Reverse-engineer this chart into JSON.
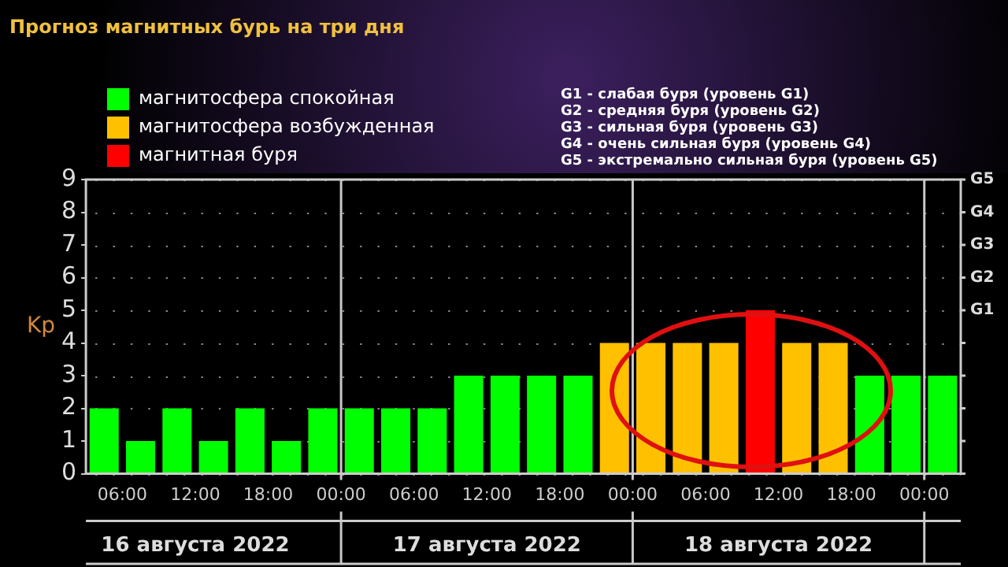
{
  "chart_data": {
    "type": "bar",
    "title": "Прогноз магнитных бурь на три дня",
    "ylabel": "Kp",
    "x": [
      "2022-08-16T04:30",
      "2022-08-16T07:30",
      "2022-08-16T10:30",
      "2022-08-16T13:30",
      "2022-08-16T16:30",
      "2022-08-16T19:30",
      "2022-08-16T22:30",
      "2022-08-17T01:30",
      "2022-08-17T04:30",
      "2022-08-17T07:30",
      "2022-08-17T10:30",
      "2022-08-17T13:30",
      "2022-08-17T16:30",
      "2022-08-17T19:30",
      "2022-08-17T22:30",
      "2022-08-18T01:30",
      "2022-08-18T04:30",
      "2022-08-18T07:30",
      "2022-08-18T10:30",
      "2022-08-18T13:30",
      "2022-08-18T16:30",
      "2022-08-18T19:30",
      "2022-08-18T22:30",
      "2022-08-19T01:30"
    ],
    "series": [
      {
        "name": "магнитосфера спокойная",
        "color": "#00ff00",
        "values": [
          2,
          1,
          2,
          1,
          2,
          1,
          2,
          2,
          2,
          2,
          3,
          3,
          3,
          3,
          null,
          null,
          null,
          null,
          null,
          null,
          null,
          3,
          3,
          3
        ]
      },
      {
        "name": "магнитосфера возбужденная",
        "color": "#ffc000",
        "values": [
          null,
          null,
          null,
          null,
          null,
          null,
          null,
          null,
          null,
          null,
          null,
          null,
          null,
          null,
          4,
          4,
          4,
          4,
          null,
          4,
          4,
          null,
          null,
          null
        ]
      },
      {
        "name": "магнитная буря",
        "color": "#ff0000",
        "values": [
          null,
          null,
          null,
          null,
          null,
          null,
          null,
          null,
          null,
          null,
          null,
          null,
          null,
          null,
          null,
          null,
          null,
          null,
          5,
          null,
          null,
          null,
          null,
          null
        ]
      }
    ],
    "stacked": true,
    "xlim": [
      "2022-08-16T03:00",
      "2022-08-19T03:00"
    ],
    "xticks": [
      {
        "value": "2022-08-16T06:00",
        "label": "06:00"
      },
      {
        "value": "2022-08-16T12:00",
        "label": "12:00"
      },
      {
        "value": "2022-08-16T18:00",
        "label": "18:00"
      },
      {
        "value": "2022-08-17T00:00",
        "label": "00:00"
      },
      {
        "value": "2022-08-17T06:00",
        "label": "06:00"
      },
      {
        "value": "2022-08-17T12:00",
        "label": "12:00"
      },
      {
        "value": "2022-08-17T18:00",
        "label": "18:00"
      },
      {
        "value": "2022-08-18T00:00",
        "label": "00:00"
      },
      {
        "value": "2022-08-18T06:00",
        "label": "06:00"
      },
      {
        "value": "2022-08-18T12:00",
        "label": "12:00"
      },
      {
        "value": "2022-08-18T18:00",
        "label": "18:00"
      },
      {
        "value": "2022-08-19T00:00",
        "label": "00:00"
      }
    ],
    "ylim": [
      0,
      9
    ],
    "yticks": [
      0,
      1,
      2,
      3,
      4,
      5,
      6,
      7,
      8,
      9
    ],
    "ref_lines": [
      {
        "axis": "x",
        "value": "2022-08-17T00:00",
        "color": "#c8c8c8"
      },
      {
        "axis": "x",
        "value": "2022-08-18T00:00",
        "color": "#c8c8c8"
      },
      {
        "axis": "x",
        "value": "2022-08-19T00:00",
        "color": "#c8c8c8"
      }
    ],
    "grid": "y",
    "legend": "top left",
    "annotations": [
      "G1 - слабая буря (уровень G1)",
      "G2 - средняя буря (уровень G2)",
      "G3 - сильная буря (уровень G3)",
      "G4 - очень сильная буря (уровень G4)",
      "G5 - экстремально сильная буря (уровень G5)",
      "16 августа 2022",
      "17 августа 2022",
      "18 августа 2022",
      "G1",
      "G2",
      "G3",
      "G4",
      "G5"
    ]
  }
}
